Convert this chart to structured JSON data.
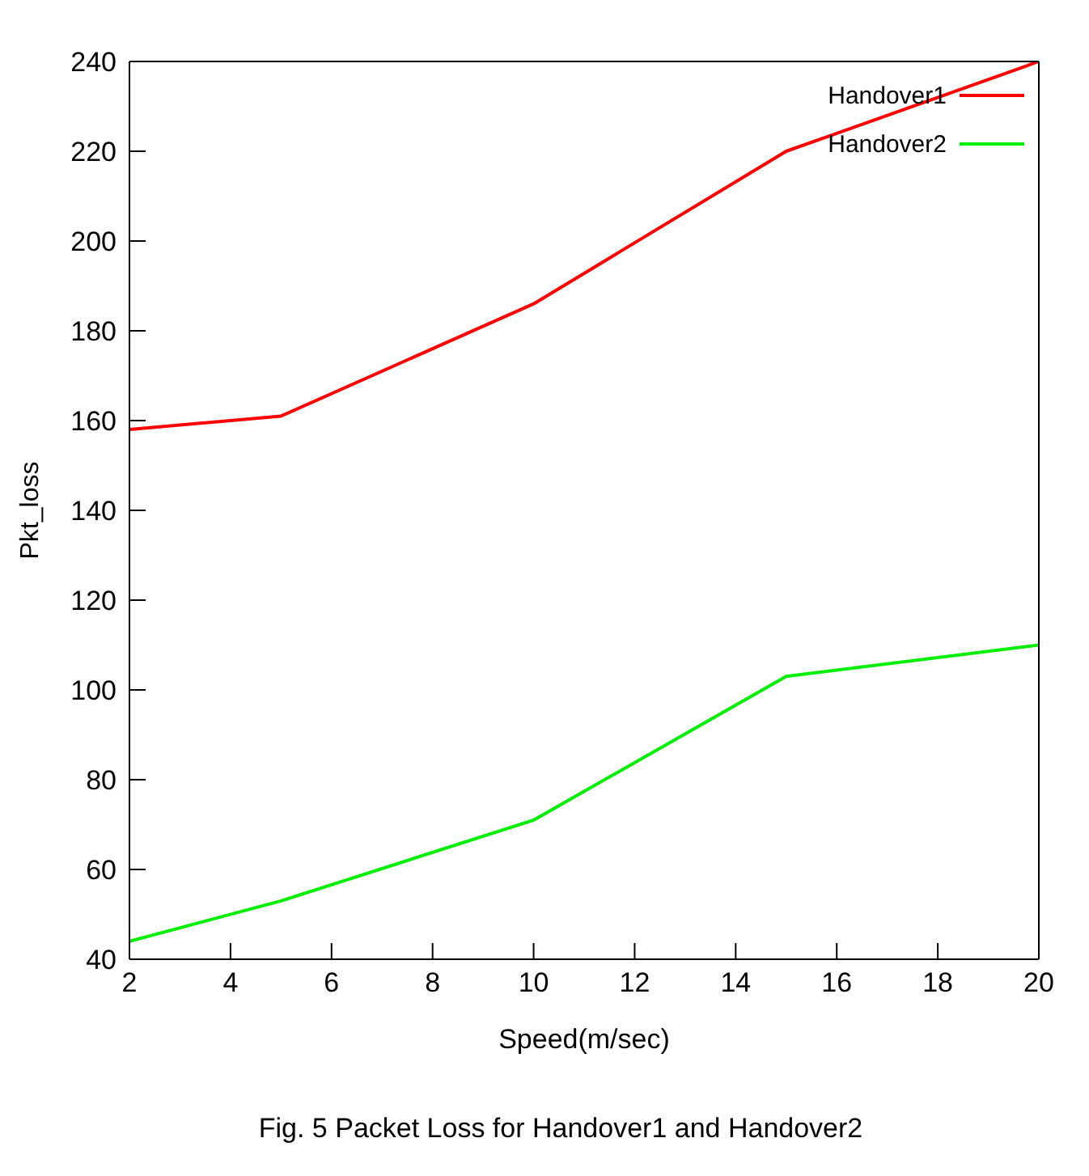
{
  "chart_data": {
    "type": "line",
    "title": "Fig. 5 Packet Loss for Handover1 and Handover2",
    "xlabel": "Speed(m/sec)",
    "ylabel": "Pkt_loss",
    "x": [
      2,
      5,
      10,
      15,
      20
    ],
    "series": [
      {
        "name": "Handover1",
        "color": "#ff0000",
        "values": [
          158,
          161,
          186,
          220,
          240
        ]
      },
      {
        "name": "Handover2",
        "color": "#00ee00",
        "values": [
          44,
          53,
          71,
          103,
          110
        ]
      }
    ],
    "xlim": [
      2,
      20
    ],
    "xticks": [
      2,
      4,
      6,
      8,
      10,
      12,
      14,
      16,
      18,
      20
    ],
    "ylim": [
      40,
      240
    ],
    "yticks": [
      40,
      60,
      80,
      100,
      120,
      140,
      160,
      180,
      200,
      220,
      240
    ],
    "grid": false,
    "legend": "top right",
    "marker": "none",
    "line_style": "solid"
  }
}
